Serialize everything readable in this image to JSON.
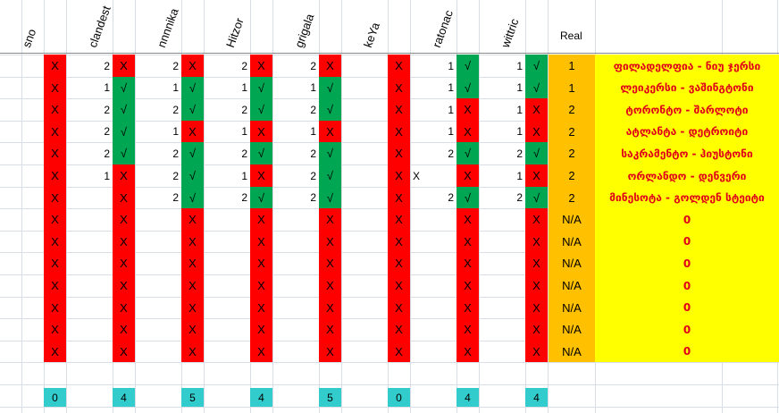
{
  "headers": {
    "players": [
      "sno",
      "clandest",
      "nnnnika",
      "Hitzor",
      "grigala",
      "keYa",
      "ratonac",
      "wittric"
    ],
    "real": "Real"
  },
  "rows": [
    {
      "pred": [
        "",
        "2",
        "2",
        "2",
        "2",
        "",
        "1",
        "1"
      ],
      "marks": [
        "X",
        "X",
        "X",
        "X",
        "X",
        "X",
        "√",
        "√"
      ],
      "colors": [
        "red",
        "red",
        "red",
        "red",
        "red",
        "red",
        "green",
        "green"
      ],
      "extra": "",
      "real": "1",
      "result": "ფილადელფია - ნიუ ჯერსი"
    },
    {
      "pred": [
        "",
        "1",
        "1",
        "1",
        "1",
        "",
        "1",
        "1"
      ],
      "marks": [
        "X",
        "√",
        "√",
        "√",
        "√",
        "X",
        "√",
        "√"
      ],
      "colors": [
        "red",
        "green",
        "green",
        "green",
        "green",
        "red",
        "green",
        "green"
      ],
      "extra": "",
      "real": "1",
      "result": "ლეიკერსი - ვაშინგტონი"
    },
    {
      "pred": [
        "",
        "2",
        "2",
        "2",
        "2",
        "",
        "1",
        "1"
      ],
      "marks": [
        "X",
        "√",
        "√",
        "√",
        "√",
        "X",
        "X",
        "X"
      ],
      "colors": [
        "red",
        "green",
        "green",
        "green",
        "green",
        "red",
        "red",
        "red"
      ],
      "extra": "",
      "real": "2",
      "result": "ტორონტო - შარლოტი"
    },
    {
      "pred": [
        "",
        "2",
        "1",
        "1",
        "1",
        "",
        "1",
        "1"
      ],
      "marks": [
        "X",
        "√",
        "X",
        "X",
        "X",
        "X",
        "X",
        "X"
      ],
      "colors": [
        "red",
        "green",
        "red",
        "red",
        "red",
        "red",
        "red",
        "red"
      ],
      "extra": "",
      "real": "2",
      "result": "ატლანტა - დეტროიტი"
    },
    {
      "pred": [
        "",
        "2",
        "2",
        "2",
        "2",
        "",
        "2",
        "2"
      ],
      "marks": [
        "X",
        "√",
        "√",
        "√",
        "√",
        "X",
        "√",
        "√"
      ],
      "colors": [
        "red",
        "green",
        "green",
        "green",
        "green",
        "red",
        "green",
        "green"
      ],
      "extra": "",
      "real": "2",
      "result": "საკრამენტო - ჰიუსტონი"
    },
    {
      "pred": [
        "",
        "1",
        "2",
        "1",
        "2",
        "",
        "",
        "1"
      ],
      "marks": [
        "X",
        "X",
        "√",
        "X",
        "√",
        "X",
        "X",
        "X"
      ],
      "colors": [
        "red",
        "red",
        "green",
        "red",
        "green",
        "red",
        "red",
        "red"
      ],
      "extra": "X",
      "real": "2",
      "result": "ორლანდო - დენვერი"
    },
    {
      "pred": [
        "",
        "",
        "2",
        "2",
        "2",
        "",
        "2",
        "2"
      ],
      "marks": [
        "X",
        "X",
        "√",
        "√",
        "√",
        "X",
        "√",
        "√"
      ],
      "colors": [
        "red",
        "red",
        "green",
        "green",
        "green",
        "red",
        "green",
        "green"
      ],
      "extra": "",
      "real": "2",
      "result": "მინესოტა - გოლდენ სტეიტი"
    },
    {
      "pred": [
        "",
        "",
        "",
        "",
        "",
        "",
        "",
        ""
      ],
      "marks": [
        "X",
        "X",
        "X",
        "X",
        "X",
        "X",
        "X",
        "X"
      ],
      "colors": [
        "red",
        "red",
        "red",
        "red",
        "red",
        "red",
        "red",
        "red"
      ],
      "extra": "",
      "real": "N/A",
      "result": "0"
    },
    {
      "pred": [
        "",
        "",
        "",
        "",
        "",
        "",
        "",
        ""
      ],
      "marks": [
        "X",
        "X",
        "X",
        "X",
        "X",
        "X",
        "X",
        "X"
      ],
      "colors": [
        "red",
        "red",
        "red",
        "red",
        "red",
        "red",
        "red",
        "red"
      ],
      "extra": "",
      "real": "N/A",
      "result": "0"
    },
    {
      "pred": [
        "",
        "",
        "",
        "",
        "",
        "",
        "",
        ""
      ],
      "marks": [
        "X",
        "X",
        "X",
        "X",
        "X",
        "X",
        "X",
        "X"
      ],
      "colors": [
        "red",
        "red",
        "red",
        "red",
        "red",
        "red",
        "red",
        "red"
      ],
      "extra": "",
      "real": "N/A",
      "result": "0"
    },
    {
      "pred": [
        "",
        "",
        "",
        "",
        "",
        "",
        "",
        ""
      ],
      "marks": [
        "X",
        "X",
        "X",
        "X",
        "X",
        "X",
        "X",
        "X"
      ],
      "colors": [
        "red",
        "red",
        "red",
        "red",
        "red",
        "red",
        "red",
        "red"
      ],
      "extra": "",
      "real": "N/A",
      "result": "0"
    },
    {
      "pred": [
        "",
        "",
        "",
        "",
        "",
        "",
        "",
        ""
      ],
      "marks": [
        "X",
        "X",
        "X",
        "X",
        "X",
        "X",
        "X",
        "X"
      ],
      "colors": [
        "red",
        "red",
        "red",
        "red",
        "red",
        "red",
        "red",
        "red"
      ],
      "extra": "",
      "real": "N/A",
      "result": "0"
    },
    {
      "pred": [
        "",
        "",
        "",
        "",
        "",
        "",
        "",
        ""
      ],
      "marks": [
        "X",
        "X",
        "X",
        "X",
        "X",
        "X",
        "X",
        "X"
      ],
      "colors": [
        "red",
        "red",
        "red",
        "red",
        "red",
        "red",
        "red",
        "red"
      ],
      "extra": "",
      "real": "N/A",
      "result": "0"
    },
    {
      "pred": [
        "",
        "",
        "",
        "",
        "",
        "",
        "",
        ""
      ],
      "marks": [
        "X",
        "X",
        "X",
        "X",
        "X",
        "X",
        "X",
        "X"
      ],
      "colors": [
        "red",
        "red",
        "red",
        "red",
        "red",
        "red",
        "red",
        "red"
      ],
      "extra": "",
      "real": "N/A",
      "result": "0"
    }
  ],
  "totals": [
    "0",
    "4",
    "5",
    "4",
    "5",
    "0",
    "4",
    "4"
  ],
  "colors": {
    "red": "#ff0000",
    "green": "#00a651",
    "orange": "#ffc000",
    "yellow": "#ffff00",
    "teal": "#33cccc",
    "result_text": "#e0001a"
  }
}
